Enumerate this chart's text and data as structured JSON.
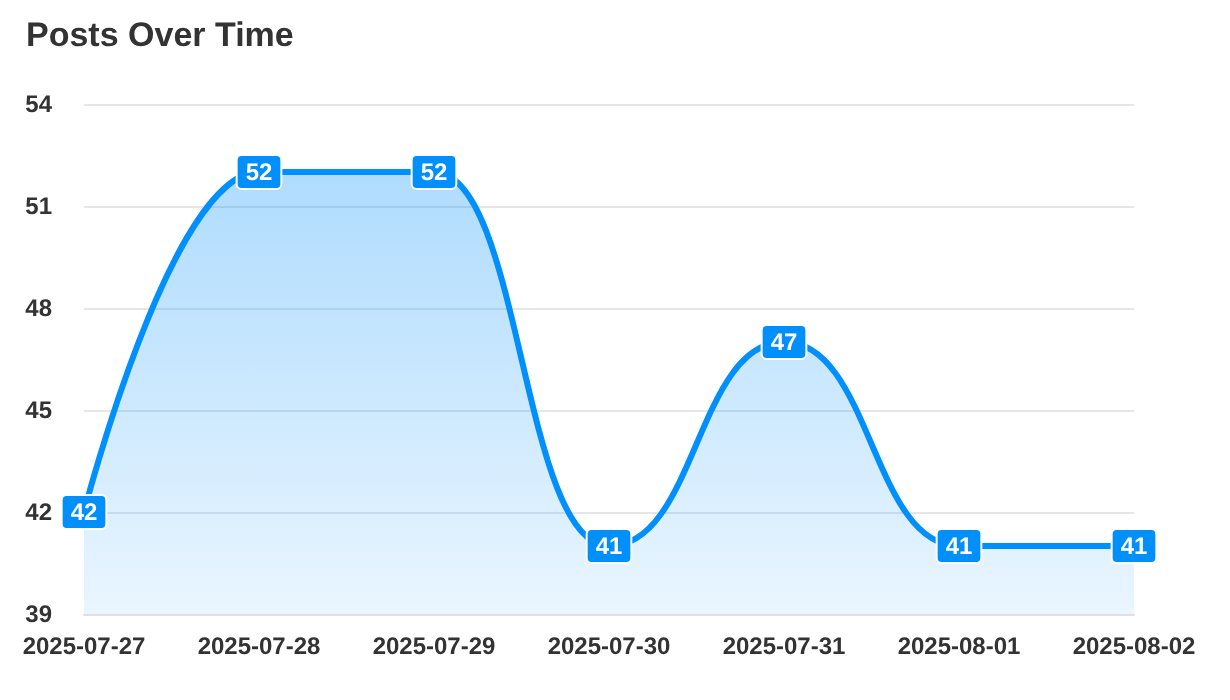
{
  "chart_data": {
    "type": "area",
    "title": "Posts Over Time",
    "categories": [
      "2025-07-27",
      "2025-07-28",
      "2025-07-29",
      "2025-07-30",
      "2025-07-31",
      "2025-08-01",
      "2025-08-02"
    ],
    "series": [
      {
        "color": "#008ffb",
        "values": [
          42,
          52,
          52,
          41,
          47,
          41,
          41
        ]
      }
    ],
    "ylim": [
      39,
      54
    ],
    "yticks": [
      39,
      42,
      45,
      48,
      51,
      54
    ],
    "grid": "y",
    "data_labels": true,
    "line_style": "solid"
  }
}
